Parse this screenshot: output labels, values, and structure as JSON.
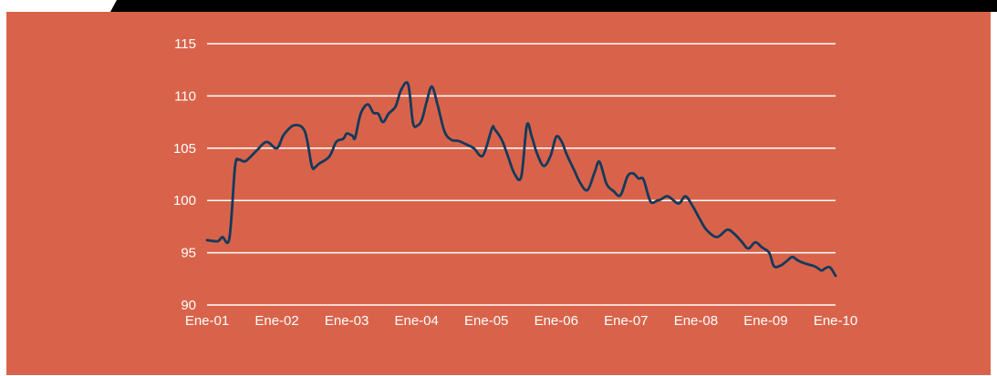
{
  "colors": {
    "background": "#D9634A",
    "line": "#123A5C",
    "grid": "#FFFFFF",
    "text": "#FFFFFF",
    "page": "#FFFFFF",
    "header": "#000000"
  },
  "chart_data": {
    "type": "line",
    "title": "",
    "xlabel": "",
    "ylabel": "",
    "ylim": [
      90,
      115
    ],
    "xlim": [
      2001.0,
      2010.0
    ],
    "grid": "horizontal",
    "y_ticks": [
      90,
      95,
      100,
      105,
      110,
      115
    ],
    "x_tick_labels": [
      "Ene-01",
      "Ene-02",
      "Ene-03",
      "Ene-04",
      "Ene-05",
      "Ene-06",
      "Ene-07",
      "Ene-08",
      "Ene-09",
      "Ene-10"
    ],
    "x_tick_values": [
      2001,
      2002,
      2003,
      2004,
      2005,
      2006,
      2007,
      2008,
      2009,
      2010
    ],
    "series": [
      {
        "x": [
          2001.0,
          2001.15,
          2001.22,
          2001.32,
          2001.4,
          2001.45,
          2001.5,
          2001.56,
          2001.7,
          2001.85,
          2002.0,
          2002.1,
          2002.25,
          2002.4,
          2002.5,
          2002.55,
          2002.6,
          2002.75,
          2002.85,
          2002.95,
          2003.0,
          2003.08,
          2003.12,
          2003.2,
          2003.3,
          2003.38,
          2003.45,
          2003.52,
          2003.6,
          2003.7,
          2003.78,
          2003.88,
          2003.95,
          2004.02,
          2004.08,
          2004.15,
          2004.22,
          2004.3,
          2004.4,
          2004.5,
          2004.6,
          2004.7,
          2004.82,
          2004.95,
          2005.08,
          2005.12,
          2005.22,
          2005.3,
          2005.4,
          2005.5,
          2005.58,
          2005.65,
          2005.72,
          2005.82,
          2005.92,
          2006.0,
          2006.08,
          2006.15,
          2006.25,
          2006.35,
          2006.45,
          2006.55,
          2006.62,
          2006.72,
          2006.82,
          2006.92,
          2007.02,
          2007.1,
          2007.18,
          2007.25,
          2007.35,
          2007.45,
          2007.5,
          2007.6,
          2007.75,
          2007.85,
          2007.95,
          2008.05,
          2008.15,
          2008.3,
          2008.45,
          2008.55,
          2008.65,
          2008.75,
          2008.85,
          2008.95,
          2009.05,
          2009.12,
          2009.22,
          2009.3,
          2009.38,
          2009.45,
          2009.55,
          2009.7,
          2009.8,
          2009.85,
          2009.92,
          2010.0
        ],
        "y": [
          96.2,
          96.1,
          96.5,
          96.4,
          103.2,
          103.9,
          103.8,
          103.8,
          104.7,
          105.6,
          105.0,
          106.3,
          107.2,
          106.6,
          103.3,
          103.2,
          103.5,
          104.2,
          105.6,
          105.9,
          106.4,
          106.2,
          106.0,
          108.3,
          109.2,
          108.4,
          108.3,
          107.5,
          108.3,
          109.0,
          110.6,
          111.1,
          107.4,
          107.2,
          107.8,
          109.6,
          110.9,
          109.2,
          106.6,
          105.8,
          105.7,
          105.4,
          105.0,
          104.3,
          106.9,
          106.8,
          105.8,
          104.4,
          102.6,
          102.3,
          107.2,
          106.1,
          104.6,
          103.3,
          104.3,
          106.1,
          105.6,
          104.4,
          103.0,
          101.6,
          101.0,
          102.7,
          103.7,
          101.6,
          100.9,
          100.5,
          102.3,
          102.6,
          102.1,
          102.0,
          99.9,
          100.0,
          100.1,
          100.4,
          99.7,
          100.4,
          99.5,
          98.3,
          97.2,
          96.5,
          97.2,
          96.8,
          96.1,
          95.4,
          96.0,
          95.5,
          95.0,
          93.7,
          93.8,
          94.2,
          94.6,
          94.3,
          94.0,
          93.7,
          93.3,
          93.5,
          93.6,
          92.8
        ]
      }
    ]
  }
}
